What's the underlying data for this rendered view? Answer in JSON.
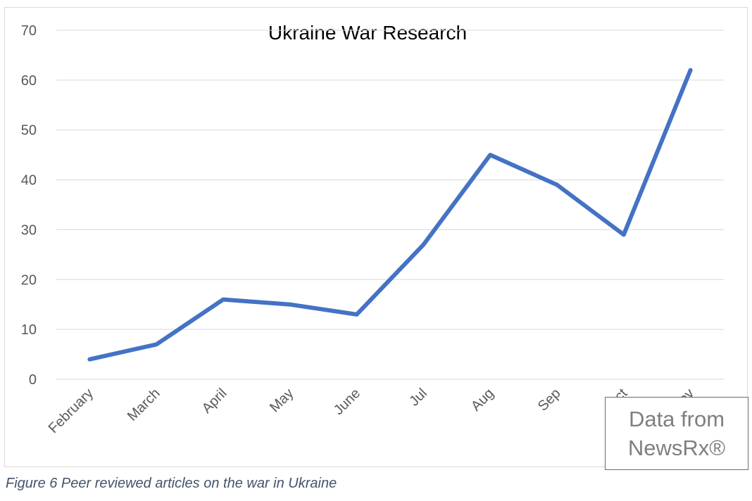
{
  "chart_data": {
    "type": "line",
    "title": "Ukraine War Research",
    "xlabel": "",
    "ylabel": "",
    "categories": [
      "February",
      "March",
      "April",
      "May",
      "June",
      "Jul",
      "Aug",
      "Sep",
      "Oct",
      "Nov"
    ],
    "series": [
      {
        "values": [
          4,
          7,
          16,
          15,
          13,
          27,
          45,
          39,
          29,
          62
        ]
      }
    ],
    "ylim": [
      0,
      70
    ],
    "yticks": [
      0,
      10,
      20,
      30,
      40,
      50,
      60,
      70
    ],
    "grid": true,
    "legend": "none",
    "line_color": "#4472c4"
  },
  "source_box": {
    "text": "Data from\nNewsRx®"
  },
  "caption": "Figure 6 Peer reviewed articles on the war in Ukraine",
  "colors": {
    "gridline": "#d9d9d9",
    "axis_text": "#595959",
    "caption": "#44546a"
  }
}
